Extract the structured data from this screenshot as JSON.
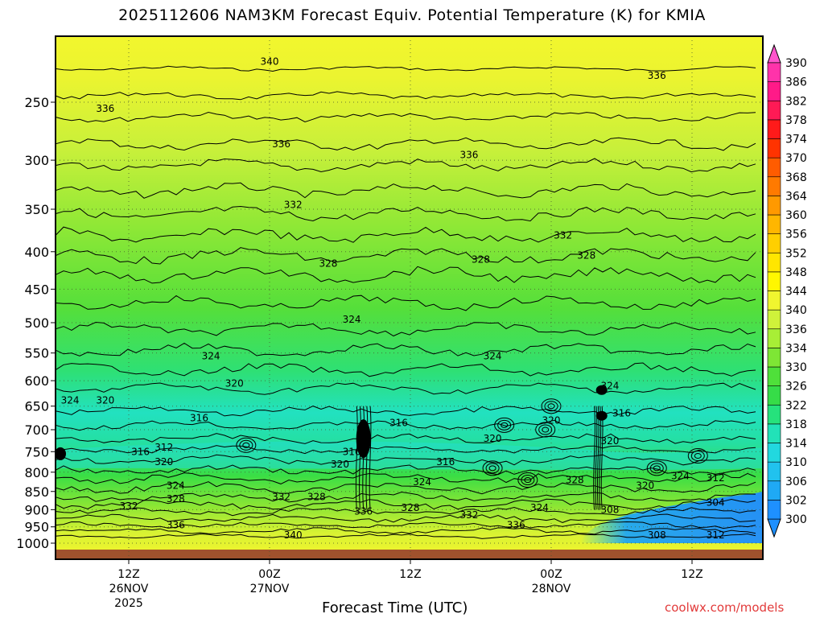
{
  "chart_data": {
    "type": "heatmap",
    "title": "2025112606 NAM3KM Forecast Equiv. Potential Temperature (K) for KMIA",
    "xlabel": "Forecast Time (UTC)",
    "ylabel": "",
    "y_ticks": [
      "250",
      "300",
      "350",
      "400",
      "450",
      "500",
      "550",
      "600",
      "650",
      "700",
      "750",
      "800",
      "850",
      "900",
      "950",
      "1000"
    ],
    "x_ticks": [
      {
        "lines": [
          "12Z",
          "26NOV",
          "2025"
        ],
        "hour": 6
      },
      {
        "lines": [
          "00Z",
          "27NOV"
        ],
        "hour": 18
      },
      {
        "lines": [
          "12Z"
        ],
        "hour": 30
      },
      {
        "lines": [
          "00Z",
          "28NOV"
        ],
        "hour": 42
      },
      {
        "lines": [
          "12Z"
        ],
        "hour": 54
      }
    ],
    "x_range_hours": [
      0,
      60
    ],
    "y_range_hpa": [
      1000,
      210
    ],
    "colorbar": {
      "levels": [
        300,
        302,
        306,
        310,
        314,
        318,
        322,
        326,
        330,
        334,
        336,
        340,
        344,
        348,
        352,
        356,
        360,
        364,
        368,
        370,
        374,
        378,
        382,
        386,
        390
      ],
      "colors": [
        "#1e90ff",
        "#1fa9f5",
        "#21c2ee",
        "#22d8df",
        "#22e2b8",
        "#26e27c",
        "#36dc48",
        "#4fe03a",
        "#7ee635",
        "#a8ee36",
        "#cff23a",
        "#f0f52f",
        "#fff700",
        "#ffe600",
        "#ffcf00",
        "#ffb600",
        "#ff9900",
        "#ff7a00",
        "#ff5c00",
        "#ff3300",
        "#ff1a1a",
        "#ff1a55",
        "#ff1a88",
        "#ff33aa",
        "#ff55cc"
      ]
    },
    "contour_labels": [
      {
        "text": "340",
        "hour": 18.0,
        "p": 220
      },
      {
        "text": "336",
        "hour": 4.0,
        "p": 255
      },
      {
        "text": "336",
        "hour": 19.0,
        "p": 285
      },
      {
        "text": "336",
        "hour": 35.0,
        "p": 295
      },
      {
        "text": "336",
        "hour": 51.0,
        "p": 230
      },
      {
        "text": "332",
        "hour": 20.0,
        "p": 345
      },
      {
        "text": "332",
        "hour": 43.0,
        "p": 380
      },
      {
        "text": "328",
        "hour": 23.0,
        "p": 415
      },
      {
        "text": "328",
        "hour": 36.0,
        "p": 410
      },
      {
        "text": "328",
        "hour": 45.0,
        "p": 405
      },
      {
        "text": "324",
        "hour": 25.0,
        "p": 495
      },
      {
        "text": "324",
        "hour": 13.0,
        "p": 555
      },
      {
        "text": "324",
        "hour": 37.0,
        "p": 555
      },
      {
        "text": "324",
        "hour": 1.0,
        "p": 638
      },
      {
        "text": "324",
        "hour": 47.0,
        "p": 610
      },
      {
        "text": "320",
        "hour": 4.0,
        "p": 638
      },
      {
        "text": "320",
        "hour": 15.0,
        "p": 605
      },
      {
        "text": "320",
        "hour": 42.0,
        "p": 680
      },
      {
        "text": "320",
        "hour": 37.0,
        "p": 720
      },
      {
        "text": "320",
        "hour": 47.0,
        "p": 725
      },
      {
        "text": "316",
        "hour": 12.0,
        "p": 675
      },
      {
        "text": "316",
        "hour": 29.0,
        "p": 685
      },
      {
        "text": "316",
        "hour": 48.0,
        "p": 665
      },
      {
        "text": "316",
        "hour": 7.0,
        "p": 750
      },
      {
        "text": "312",
        "hour": 9.0,
        "p": 740
      },
      {
        "text": "316",
        "hour": 25.0,
        "p": 750
      },
      {
        "text": "316",
        "hour": 33.0,
        "p": 775
      },
      {
        "text": "320",
        "hour": 9.0,
        "p": 775
      },
      {
        "text": "320",
        "hour": 24.0,
        "p": 780
      },
      {
        "text": "324",
        "hour": 10.0,
        "p": 835
      },
      {
        "text": "324",
        "hour": 31.0,
        "p": 825
      },
      {
        "text": "324",
        "hour": 53.0,
        "p": 810
      },
      {
        "text": "328",
        "hour": 10.0,
        "p": 870
      },
      {
        "text": "328",
        "hour": 22.0,
        "p": 865
      },
      {
        "text": "328",
        "hour": 44.0,
        "p": 820
      },
      {
        "text": "320",
        "hour": 50.0,
        "p": 835
      },
      {
        "text": "312",
        "hour": 56.0,
        "p": 815
      },
      {
        "text": "332",
        "hour": 6.0,
        "p": 890
      },
      {
        "text": "332",
        "hour": 19.0,
        "p": 865
      },
      {
        "text": "328",
        "hour": 30.0,
        "p": 895
      },
      {
        "text": "332",
        "hour": 35.0,
        "p": 915
      },
      {
        "text": "324",
        "hour": 41.0,
        "p": 895
      },
      {
        "text": "308",
        "hour": 47.0,
        "p": 900
      },
      {
        "text": "304",
        "hour": 56.0,
        "p": 880
      },
      {
        "text": "336",
        "hour": 10.0,
        "p": 945
      },
      {
        "text": "336",
        "hour": 26.0,
        "p": 905
      },
      {
        "text": "336",
        "hour": 39.0,
        "p": 945
      },
      {
        "text": "340",
        "hour": 20.0,
        "p": 975
      },
      {
        "text": "308",
        "hour": 51.0,
        "p": 975
      },
      {
        "text": "312",
        "hour": 56.0,
        "p": 975
      }
    ]
  },
  "credit": "coolwx.com/models"
}
